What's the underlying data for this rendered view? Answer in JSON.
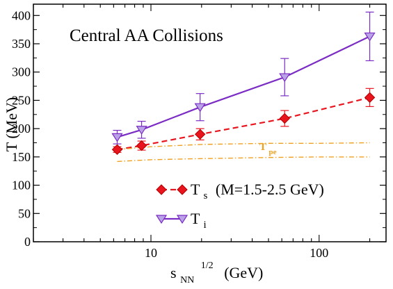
{
  "chart_data": {
    "type": "line",
    "title": "Central AA Collisions",
    "xlabel": {
      "base": "s",
      "sub": "NN",
      "sup": "1/2",
      "unit": "(GeV)"
    },
    "ylabel": "T (MeV)",
    "xscale": "log",
    "xlim": [
      2,
      250
    ],
    "ylim": [
      0,
      420
    ],
    "x_ticks": [
      10,
      100
    ],
    "y_ticks": [
      0,
      50,
      100,
      150,
      200,
      250,
      300,
      350,
      400
    ],
    "grid": false,
    "legend_position": "lower-center",
    "series": [
      {
        "id": "ts",
        "label": {
          "base": "T",
          "sub": "s",
          "suffix": "(M=1.5-2.5 GeV)"
        },
        "color": "#e8141e",
        "line_style": "dashed",
        "marker": "diamond",
        "x": [
          6.3,
          8.8,
          19.6,
          62.4,
          200
        ],
        "y": [
          163,
          170,
          190,
          218,
          255
        ],
        "err": [
          5,
          8,
          10,
          14,
          16
        ]
      },
      {
        "id": "ti",
        "label": {
          "base": "T",
          "sub": "i"
        },
        "color": "#7b2cc4",
        "line_style": "solid",
        "marker": "triangle-down",
        "x": [
          6.3,
          8.8,
          19.6,
          62.4,
          200
        ],
        "y": [
          185,
          198,
          238,
          291,
          363
        ],
        "err": [
          12,
          15,
          24,
          33,
          43
        ]
      },
      {
        "id": "tpe_upper",
        "color": "#f0a020",
        "line_style": "dashdot",
        "x": [
          6.3,
          10,
          20,
          50,
          100,
          200
        ],
        "y": [
          163,
          168,
          172,
          174,
          174,
          175
        ]
      },
      {
        "id": "tpe_lower",
        "color": "#f0a020",
        "line_style": "dashdot",
        "x": [
          6.3,
          10,
          20,
          50,
          100,
          200
        ],
        "y": [
          142,
          145,
          147,
          149,
          150,
          150
        ]
      }
    ],
    "annotations": [
      {
        "base": "T",
        "sub": "pe",
        "color": "#f0a020",
        "x": 50,
        "y": 162
      }
    ]
  }
}
